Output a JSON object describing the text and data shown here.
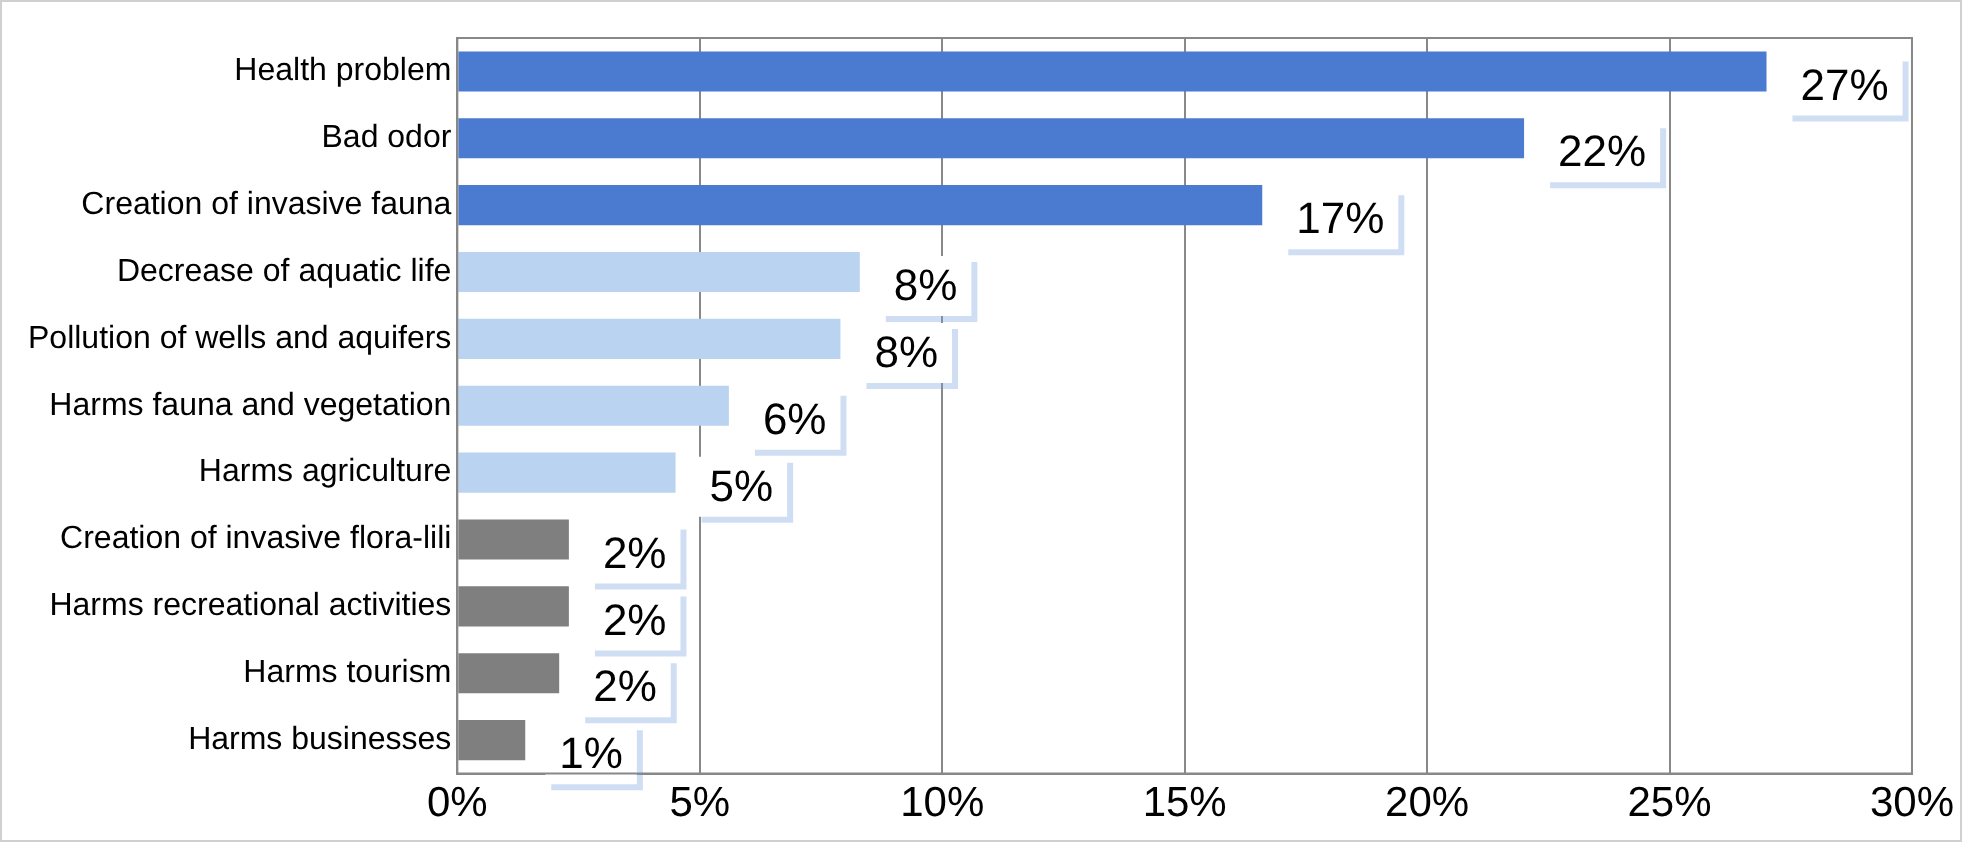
{
  "chart_data": {
    "type": "bar",
    "orientation": "horizontal",
    "categories": [
      "Health problem",
      "Bad odor",
      "Creation of invasive fauna",
      "Decrease of aquatic life",
      "Pollution of wells and aquifers",
      "Harms fauna and vegetation",
      "Harms agriculture",
      "Creation of invasive flora-lili",
      "Harms recreational activities",
      "Harms tourism",
      "Harms businesses"
    ],
    "values": [
      27,
      22,
      16.6,
      8.3,
      7.9,
      5.6,
      4.5,
      2.3,
      2.3,
      2.1,
      1.4
    ],
    "colors": [
      "#4a7bd0",
      "#4a7bd0",
      "#4a7bd0",
      "#b9d3f0",
      "#b9d3f0",
      "#b9d3f0",
      "#b9d3f0",
      "#7f7f7f",
      "#7f7f7f",
      "#7f7f7f",
      "#7f7f7f"
    ],
    "value_labels": [
      "27%",
      "22%",
      "17%",
      "8%",
      "8%",
      "6%",
      "5%",
      "2%",
      "2%",
      "2%",
      "1%"
    ],
    "xlim": [
      0,
      30
    ],
    "xticks": [
      {
        "value": 0,
        "label": "0%"
      },
      {
        "value": 5,
        "label": "5%"
      },
      {
        "value": 10,
        "label": "10%"
      },
      {
        "value": 15,
        "label": "15%"
      },
      {
        "value": 20,
        "label": "20%"
      },
      {
        "value": 25,
        "label": "25%"
      },
      {
        "value": 30,
        "label": "30%"
      }
    ],
    "grid": "x",
    "legend": false
  }
}
